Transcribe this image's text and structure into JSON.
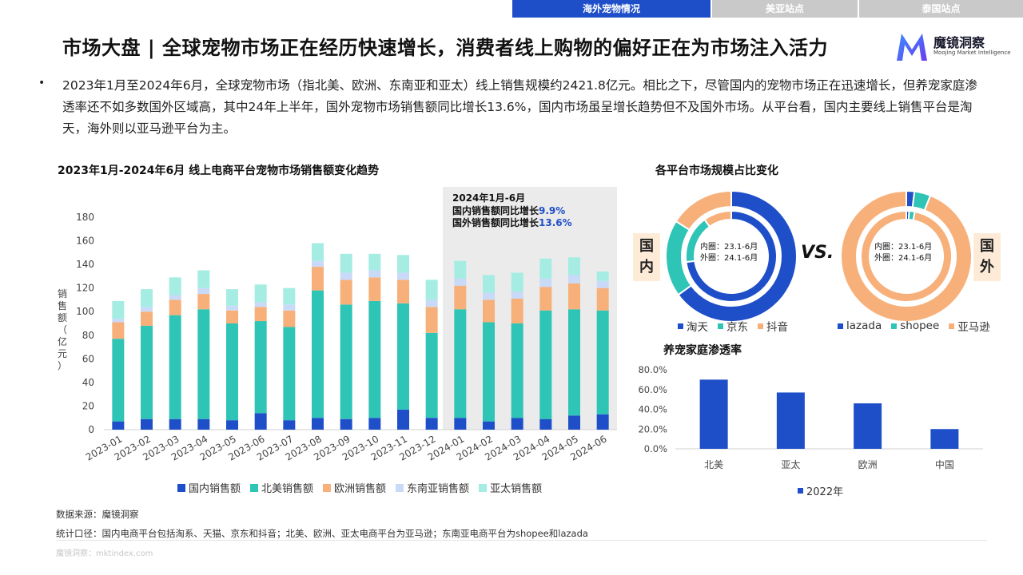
{
  "tabs": [
    {
      "label": "海外宠物情况",
      "active": true
    },
    {
      "label": "美亚站点",
      "active": false
    },
    {
      "label": "泰国站点",
      "active": false
    }
  ],
  "header": {
    "title": "市场大盘 | 全球宠物市场正在经历快速增长，消费者线上购物的偏好正在为市场注入活力",
    "logo_name": "魔镜洞察",
    "logo_sub": "Moojing Market Intelligence"
  },
  "summary": "2023年1月至2024年6月，全球宠物市场（指北美、欧洲、东南亚和亚太）线上销售规模约2421.8亿元。相比之下，尽管国内的宠物市场正在迅速增长，但养宠家庭渗透率还不如多数国外区域高，其中24年上半年，国外宠物市场销售额同比增长13.6%，国内市场虽呈增长趋势但不及国外市场。从平台看，国内主要线上销售平台是淘天，海外则以亚马逊平台为主。",
  "colors": {
    "domestic": "#1f4fc8",
    "north_america": "#2ec4b6",
    "europe": "#f7b07a",
    "sea": "#c9daf8",
    "apac": "#a5ece3",
    "tab_active": "#1f4fc8",
    "tab_inactive": "#c9c9c9",
    "highlight_bg": "#ebebeb",
    "highlight_value": "#1f4fc8"
  },
  "chart_data": [
    {
      "type": "bar",
      "stacked": true,
      "title": "2023年1月-2024年6月 线上电商平台宠物市场销售额变化趋势",
      "ylabel": "销售额（亿元）",
      "ylim": [
        0,
        180
      ],
      "yticks": [
        0,
        20,
        40,
        60,
        80,
        100,
        120,
        140,
        160,
        180
      ],
      "categories": [
        "2023-01",
        "2023-02",
        "2023-03",
        "2023-04",
        "2023-05",
        "2023-06",
        "2023-07",
        "2023-08",
        "2023-09",
        "2023-10",
        "2023-11",
        "2023-12",
        "2024-01",
        "2024-02",
        "2024-03",
        "2024-04",
        "2024-05",
        "2024-06"
      ],
      "series": [
        {
          "name": "国内销售额",
          "color": "#1f4fc8",
          "values": [
            7,
            9,
            9,
            9,
            8,
            14,
            8,
            10,
            9,
            10,
            17,
            10,
            10,
            7,
            10,
            9,
            12,
            13
          ]
        },
        {
          "name": "北美销售额",
          "color": "#2ec4b6",
          "values": [
            70,
            79,
            88,
            93,
            82,
            78,
            79,
            108,
            97,
            99,
            90,
            72,
            92,
            84,
            80,
            92,
            90,
            88
          ]
        },
        {
          "name": "欧洲销售额",
          "color": "#f7b07a",
          "values": [
            14,
            12,
            13,
            13,
            11,
            12,
            14,
            20,
            21,
            20,
            20,
            22,
            20,
            19,
            21,
            20,
            22,
            19
          ]
        },
        {
          "name": "东南亚销售额",
          "color": "#c9daf8",
          "values": [
            3,
            4,
            4,
            5,
            4,
            4,
            5,
            5,
            6,
            6,
            6,
            6,
            6,
            6,
            6,
            7,
            7,
            6
          ]
        },
        {
          "name": "亚太销售额",
          "color": "#a5ece3",
          "values": [
            15,
            15,
            15,
            15,
            14,
            15,
            14,
            15,
            16,
            14,
            15,
            17,
            15,
            15,
            16,
            17,
            15,
            8
          ]
        }
      ],
      "legend": "bottom",
      "highlight": {
        "from": "2024-01",
        "to": "2024-06",
        "heading": "2024年1月-6月",
        "line1_label": "国内销售额同比增长",
        "line1_value": "9.9%",
        "line2_label": "国外销售额同比增长",
        "line2_value": "13.6%"
      }
    },
    {
      "type": "pie",
      "variant": "double-donut",
      "title": "各平台市场规模占比变化",
      "group": "国内",
      "inner_ring": "内圈：23.1-6月",
      "outer_ring": "外圈：24.1-6月",
      "categories": [
        "淘天",
        "京东",
        "抖音"
      ],
      "colors": [
        "#1f4fc8",
        "#2ec4b6",
        "#f7b07a"
      ],
      "inner_values": [
        73,
        17,
        10
      ],
      "outer_values": [
        65,
        19,
        16
      ]
    },
    {
      "type": "pie",
      "variant": "double-donut",
      "group": "国外",
      "inner_ring": "内圈：23.1-6月",
      "outer_ring": "外圈：24.1-6月",
      "categories": [
        "lazada",
        "shopee",
        "亚马逊"
      ],
      "colors": [
        "#1f4fc8",
        "#2ec4b6",
        "#f7b07a"
      ],
      "inner_values": [
        1,
        2,
        97
      ],
      "outer_values": [
        2,
        4,
        94
      ]
    },
    {
      "type": "bar",
      "title": "养宠家庭渗透率",
      "categories": [
        "北美",
        "亚太",
        "欧洲",
        "中国"
      ],
      "series": [
        {
          "name": "2022年",
          "color": "#1f4fc8",
          "values": [
            70,
            57,
            46,
            20
          ]
        }
      ],
      "ylim": [
        0,
        80
      ],
      "yticks": [
        "0.0%",
        "20.0%",
        "40.0%",
        "60.0%",
        "80.0%"
      ],
      "unit": "%",
      "legend": "bottom"
    }
  ],
  "vs_label": "VS.",
  "side_labels": {
    "domestic": "国内",
    "overseas": "国外"
  },
  "footer": {
    "source": "数据来源：魔镜洞察",
    "scope": "统计口径：国内电商平台包括淘系、天猫、京东和抖音；北美、欧洲、亚太电商平台为亚马逊；东南亚电商平台为shopee和lazada",
    "watermark": "魔镜洞察：mktindex.com"
  }
}
